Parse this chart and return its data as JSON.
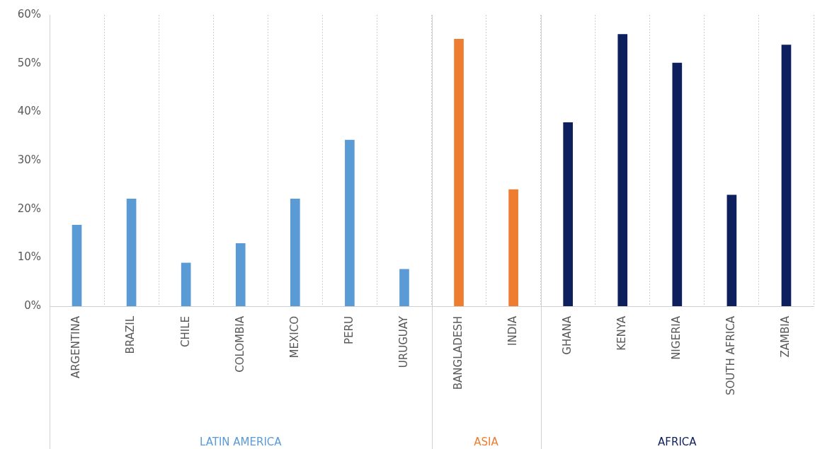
{
  "chart_data": {
    "type": "bar",
    "categories": [
      "ARGENTINA",
      "BRAZIL",
      "CHILE",
      "COLOMBIA",
      "MEXICO",
      "PERU",
      "URUGUAY",
      "BANGLADESH",
      "INDIA",
      "GHANA",
      "KENYA",
      "NIGERIA",
      "SOUTH AFRICA",
      "ZAMBIA"
    ],
    "series": [
      {
        "name": "LATIN AMERICA",
        "color": "#5b9bd5",
        "values": [
          16.7,
          22.1,
          8.9,
          12.9,
          22.1,
          34.2,
          7.6,
          null,
          null,
          null,
          null,
          null,
          null,
          null
        ]
      },
      {
        "name": "ASIA",
        "color": "#ed7d31",
        "values": [
          null,
          null,
          null,
          null,
          null,
          null,
          null,
          55.0,
          24.0,
          null,
          null,
          null,
          null,
          null
        ]
      },
      {
        "name": "AFRICA",
        "color": "#0d1f5c",
        "values": [
          null,
          null,
          null,
          null,
          null,
          null,
          null,
          null,
          null,
          37.8,
          56.0,
          50.1,
          22.9,
          53.8
        ]
      }
    ],
    "ylim": [
      0,
      60
    ],
    "yticks": [
      {
        "value": 0,
        "label": "0%"
      },
      {
        "value": 10,
        "label": "10%"
      },
      {
        "value": 20,
        "label": "20%"
      },
      {
        "value": 30,
        "label": "30%"
      },
      {
        "value": 40,
        "label": "40%"
      },
      {
        "value": 50,
        "label": "50%"
      },
      {
        "value": 60,
        "label": "60%"
      }
    ],
    "grid": "x",
    "legend": false
  }
}
